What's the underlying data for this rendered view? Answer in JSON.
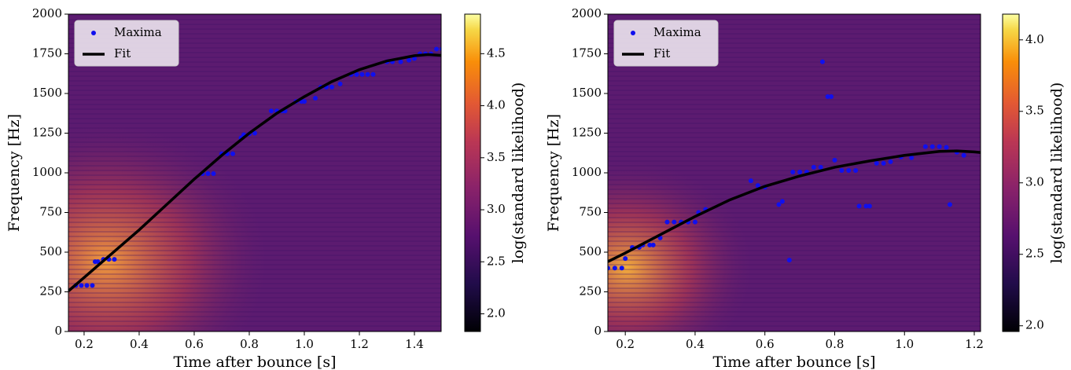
{
  "chart_data": [
    {
      "type": "scatter",
      "xlabel": "Time after bounce [s]",
      "ylabel": "Frequency [Hz]",
      "xlim": [
        0.143,
        1.497
      ],
      "ylim": [
        0,
        2000
      ],
      "xticks": [
        0.2,
        0.4,
        0.6,
        0.8,
        {
          "value": 1,
          "label": "1.0"
        },
        1.2,
        1.4
      ],
      "yticks": [
        0,
        250,
        500,
        750,
        1000,
        1250,
        1500,
        1750,
        2000
      ],
      "legend": "upper left",
      "series": [
        {
          "name": "Maxima",
          "color": "#1010ee",
          "style": "points",
          "x": [
            0.17,
            0.19,
            0.21,
            0.23,
            0.24,
            0.25,
            0.27,
            0.29,
            0.31,
            0.63,
            0.65,
            0.67,
            0.7,
            0.72,
            0.74,
            0.77,
            0.78,
            0.8,
            0.82,
            0.88,
            0.9,
            0.92,
            0.93,
            0.97,
            0.99,
            1.0,
            1.04,
            1.06,
            1.08,
            1.1,
            1.13,
            1.17,
            1.19,
            1.21,
            1.23,
            1.25,
            1.3,
            1.32,
            1.35,
            1.38,
            1.4,
            1.42,
            1.44,
            1.46,
            1.48,
            1.5
          ],
          "values": [
            290,
            290,
            290,
            290,
            440,
            440,
            455,
            455,
            455,
            995,
            995,
            995,
            1120,
            1120,
            1120,
            1220,
            1240,
            1245,
            1250,
            1390,
            1390,
            1390,
            1390,
            1450,
            1450,
            1450,
            1470,
            1540,
            1540,
            1540,
            1560,
            1620,
            1620,
            1620,
            1620,
            1620,
            1700,
            1700,
            1700,
            1710,
            1720,
            1750,
            1750,
            1750,
            1780,
            1780
          ]
        },
        {
          "name": "Fit",
          "color": "#000000",
          "style": "line",
          "x": [
            0.143,
            0.2,
            0.3,
            0.4,
            0.5,
            0.6,
            0.7,
            0.8,
            0.9,
            1.0,
            1.1,
            1.2,
            1.3,
            1.4,
            1.45,
            1.497
          ],
          "values": [
            255,
            340,
            490,
            640,
            800,
            960,
            1110,
            1250,
            1375,
            1480,
            1575,
            1650,
            1705,
            1738,
            1745,
            1740
          ]
        }
      ],
      "colorbar": {
        "label": "log(standard likelihood)",
        "colormap": "inferno",
        "lim": [
          1.83,
          4.88
        ],
        "ticks": [
          {
            "value": 2,
            "label": "2.0"
          },
          2.5,
          {
            "value": 3,
            "label": "3.0"
          },
          3.5,
          {
            "value": 4,
            "label": "4.0"
          },
          4.5
        ]
      }
    },
    {
      "type": "scatter",
      "xlabel": "Time after bounce [s]",
      "ylabel": "Frequency [Hz]",
      "xlim": [
        0.15,
        1.218
      ],
      "ylim": [
        0,
        2000
      ],
      "xticks": [
        0.2,
        0.4,
        0.6,
        0.8,
        {
          "value": 1,
          "label": "1.0"
        },
        1.2
      ],
      "yticks": [
        0,
        250,
        500,
        750,
        1000,
        1250,
        1500,
        1750,
        2000
      ],
      "legend": "upper left",
      "series": [
        {
          "name": "Maxima",
          "color": "#1010ee",
          "style": "points",
          "x": [
            0.15,
            0.17,
            0.19,
            0.2,
            0.22,
            0.24,
            0.25,
            0.27,
            0.28,
            0.3,
            0.32,
            0.34,
            0.36,
            0.38,
            0.4,
            0.41,
            0.43,
            0.56,
            0.58,
            0.6,
            0.64,
            0.65,
            0.67,
            0.68,
            0.7,
            0.72,
            0.74,
            0.76,
            0.765,
            0.78,
            0.79,
            0.8,
            0.82,
            0.84,
            0.86,
            0.87,
            0.89,
            0.9,
            0.92,
            0.94,
            0.96,
            0.99,
            1.02,
            1.06,
            1.08,
            1.1,
            1.12,
            1.13,
            1.15,
            1.17
          ],
          "values": [
            400,
            400,
            400,
            460,
            530,
            530,
            545,
            545,
            545,
            590,
            690,
            690,
            690,
            690,
            690,
            750,
            770,
            950,
            920,
            910,
            800,
            820,
            450,
            1005,
            1005,
            1005,
            1035,
            1035,
            1700,
            1480,
            1480,
            1080,
            1015,
            1015,
            1015,
            790,
            790,
            790,
            1060,
            1060,
            1070,
            1100,
            1095,
            1165,
            1165,
            1165,
            1160,
            800,
            1130,
            1110
          ]
        },
        {
          "name": "Fit",
          "color": "#000000",
          "style": "line",
          "x": [
            0.15,
            0.2,
            0.3,
            0.4,
            0.5,
            0.6,
            0.7,
            0.8,
            0.9,
            1.0,
            1.1,
            1.15,
            1.2,
            1.218
          ],
          "values": [
            440,
            495,
            610,
            725,
            830,
            915,
            980,
            1035,
            1075,
            1110,
            1135,
            1138,
            1132,
            1128
          ]
        }
      ],
      "colorbar": {
        "label": "log(standard likelihood)",
        "colormap": "inferno",
        "lim": [
          1.96,
          4.18
        ],
        "ticks": [
          {
            "value": 2,
            "label": "2.0"
          },
          2.5,
          {
            "value": 3,
            "label": "3.0"
          },
          3.5,
          {
            "value": 4,
            "label": "4.0"
          }
        ]
      }
    }
  ]
}
